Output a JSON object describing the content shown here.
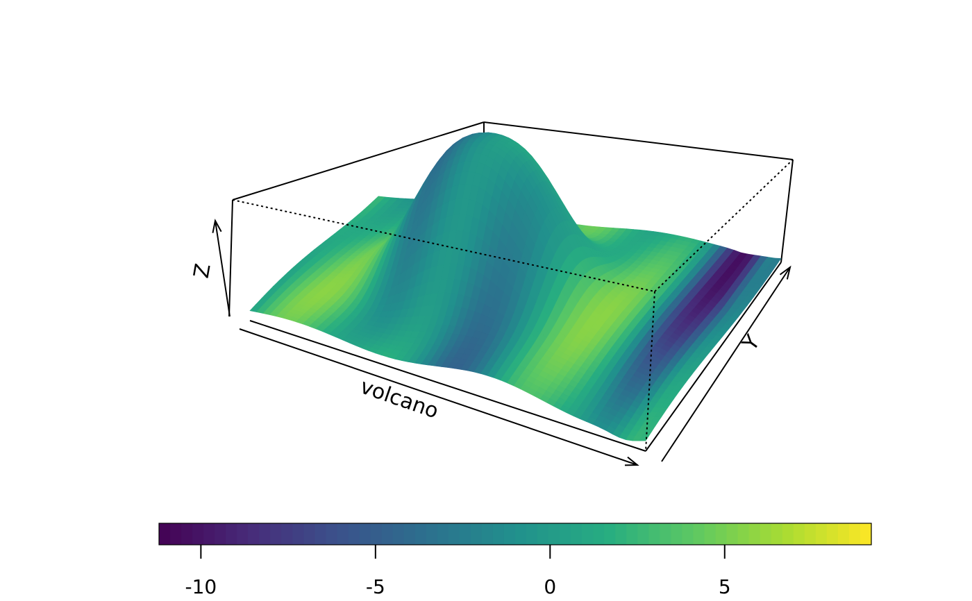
{
  "chart_data": {
    "type": "surface3d",
    "title": "",
    "xlabel": "volcano",
    "ylabel": "Y",
    "zlabel": "Z",
    "colorbar": {
      "palette": "viridis",
      "range": [
        -11.2,
        9.2
      ],
      "ticks": [
        -10,
        -5,
        0,
        5
      ],
      "tick_labels": [
        "-10",
        "-5",
        "0",
        "5"
      ],
      "placement": "bottom",
      "n_steps": 64
    },
    "colors": {
      "low": "#440154",
      "mid": "#21908c",
      "high": "#fde725"
    },
    "box": "perspective box with dotted hidden edges"
  }
}
